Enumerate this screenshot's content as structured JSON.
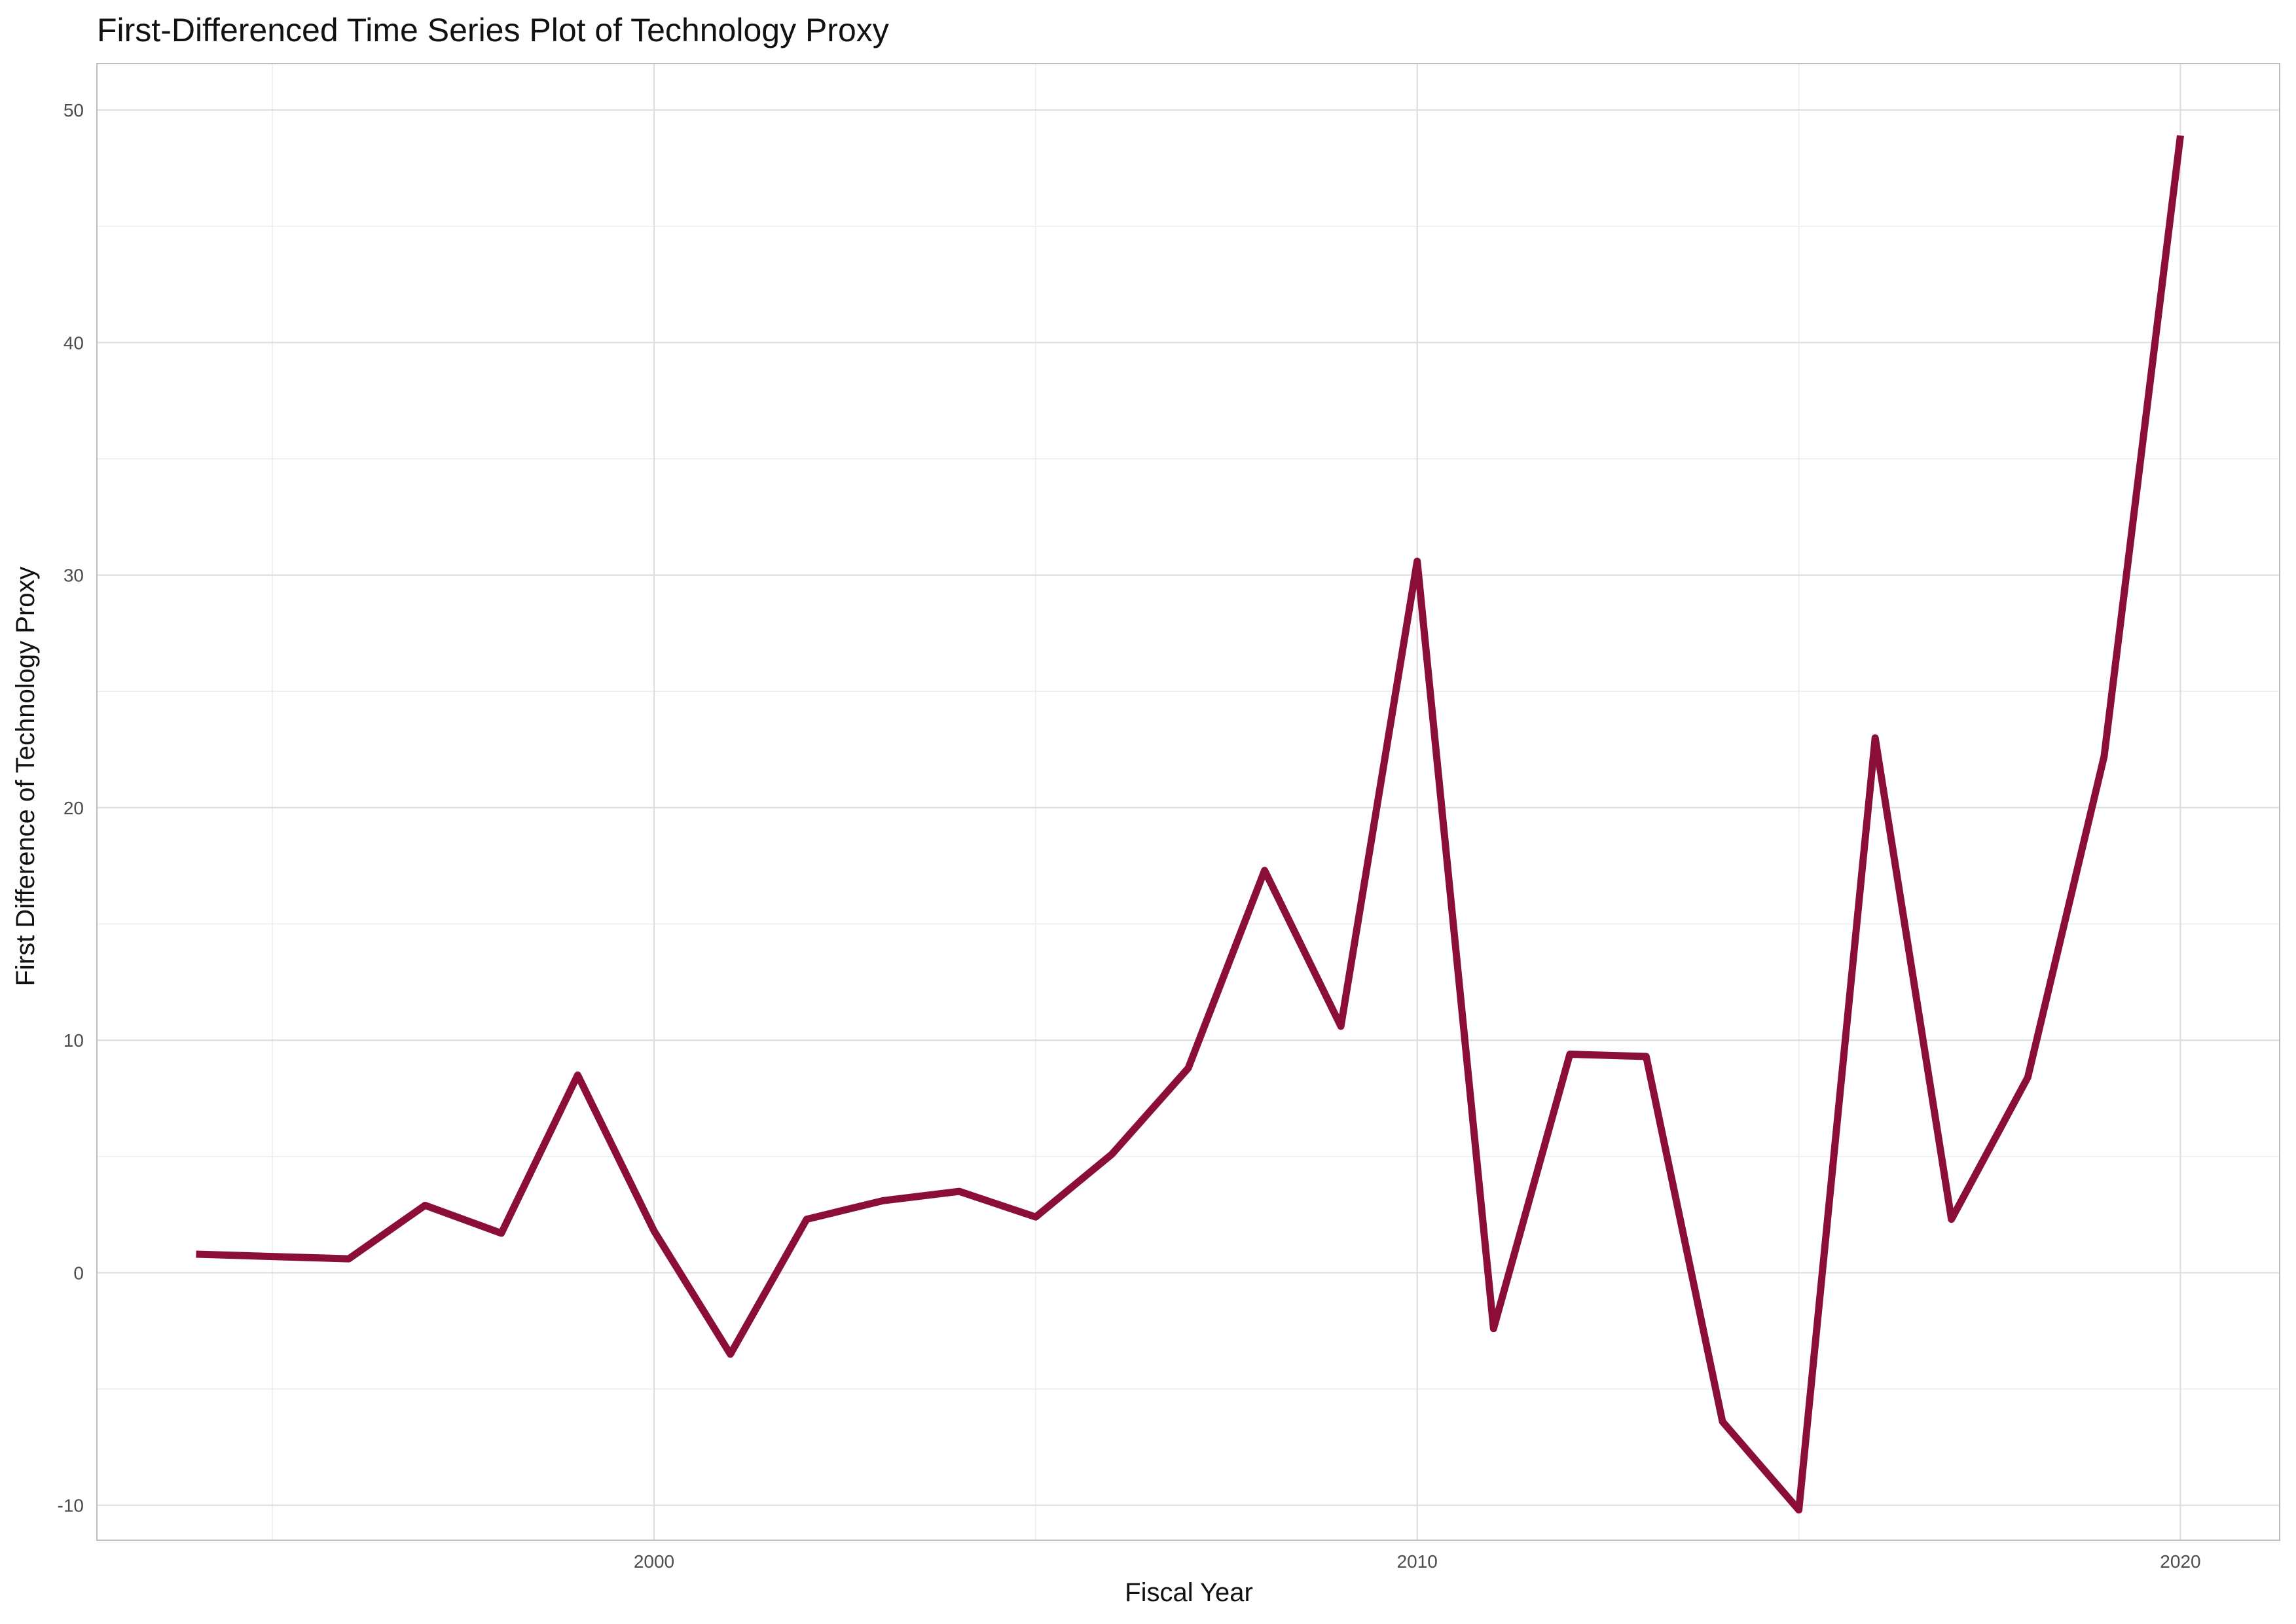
{
  "chart_data": {
    "type": "line",
    "title": "First-Differenced Time Series Plot of Technology Proxy",
    "xlabel": "Fiscal Year",
    "ylabel": "First Difference of Technology Proxy",
    "xlim": [
      1992.7,
      2021.3
    ],
    "ylim": [
      -11.5,
      52
    ],
    "x_ticks": [
      2000,
      2010,
      2020
    ],
    "x_minor_ticks": [
      1995,
      2005,
      2015
    ],
    "y_ticks": [
      -10,
      0,
      10,
      20,
      30,
      40,
      50
    ],
    "y_minor_ticks": [
      -5,
      5,
      15,
      25,
      35,
      45
    ],
    "grid": true,
    "legend": "none",
    "line_color": "#8B0E3A",
    "series": [
      {
        "x": [
          1994,
          1995,
          1996,
          1997,
          1998,
          1999,
          2000,
          2001,
          2002,
          2003,
          2004,
          2005,
          2006,
          2007,
          2008,
          2009,
          2010,
          2011,
          2012,
          2013,
          2014,
          2015,
          2016,
          2017,
          2018,
          2019,
          2020
        ],
        "values": [
          0.8,
          0.7,
          0.6,
          2.9,
          1.7,
          8.5,
          1.8,
          -3.5,
          2.3,
          3.1,
          3.5,
          2.4,
          5.1,
          8.8,
          17.3,
          10.6,
          30.6,
          -2.4,
          9.4,
          9.3,
          -6.4,
          -10.2,
          23.0,
          2.3,
          8.4,
          22.2,
          48.9
        ]
      }
    ]
  }
}
